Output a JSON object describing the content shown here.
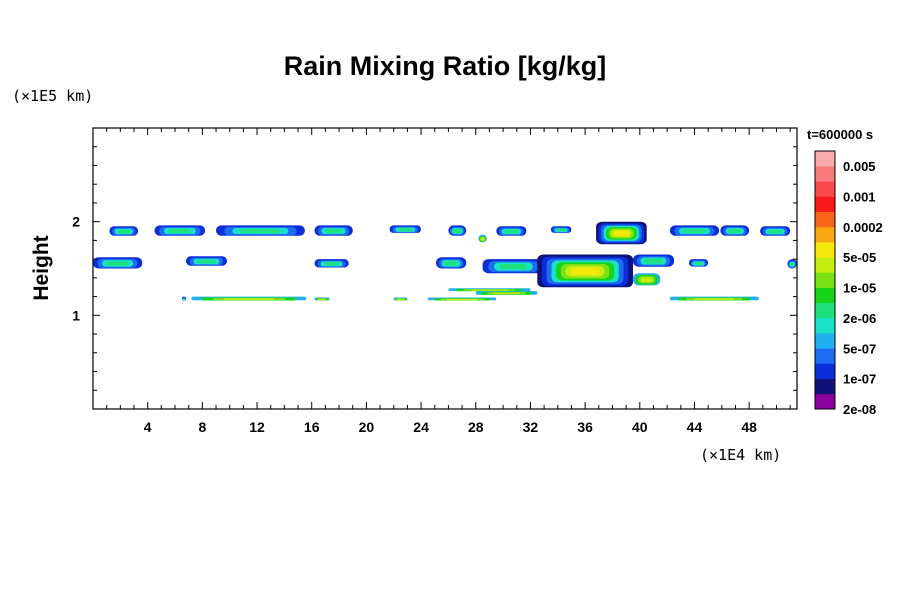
{
  "chart_data": {
    "type": "heatmap",
    "title": "Rain Mixing Ratio [kg/kg]",
    "ylabel": "Height",
    "y_unit": "(×1E5 km)",
    "x_unit": "(×1E4 km)",
    "time_label": "t=600000 s",
    "xlim": [
      0,
      51.5
    ],
    "ylim": [
      0,
      3
    ],
    "x_ticks": [
      "4",
      "8",
      "12",
      "16",
      "20",
      "24",
      "28",
      "32",
      "36",
      "40",
      "44",
      "48"
    ],
    "y_ticks": [
      "1",
      "2"
    ],
    "colorbar": {
      "labels": [
        "0.005",
        "0.001",
        "0.0002",
        "5e-05",
        "1e-05",
        "2e-06",
        "5e-07",
        "1e-07",
        "2e-08"
      ],
      "colors": [
        "#8a009e",
        "#10127a",
        "#0a2fd8",
        "#1e6cf2",
        "#22b0f3",
        "#19e2c8",
        "#1ee07e",
        "#16d41a",
        "#7ae214",
        "#c4ee10",
        "#f2e80a",
        "#f8a810",
        "#f86518",
        "#f81a1a",
        "#f84a4a",
        "#f87a7a",
        "#f9aaaa"
      ]
    },
    "features": [
      {
        "x": [
          1.2,
          3.3
        ],
        "y": [
          1.85,
          1.95
        ],
        "level": "1e-07"
      },
      {
        "x": [
          4.5,
          8.2
        ],
        "y": [
          1.85,
          1.96
        ],
        "level": "1e-07"
      },
      {
        "x": [
          9.0,
          15.5
        ],
        "y": [
          1.85,
          1.96
        ],
        "level": "1e-07"
      },
      {
        "x": [
          16.2,
          19.0
        ],
        "y": [
          1.85,
          1.96
        ],
        "level": "1e-07"
      },
      {
        "x": [
          21.7,
          24.0
        ],
        "y": [
          1.88,
          1.96
        ],
        "level": "1e-07"
      },
      {
        "x": [
          26.0,
          27.3
        ],
        "y": [
          1.85,
          1.96
        ],
        "level": "1e-07"
      },
      {
        "x": [
          29.5,
          31.7
        ],
        "y": [
          1.85,
          1.95
        ],
        "level": "1e-07"
      },
      {
        "x": [
          33.5,
          35.0
        ],
        "y": [
          1.88,
          1.95
        ],
        "level": "1e-07"
      },
      {
        "x": [
          36.8,
          40.5
        ],
        "y": [
          1.76,
          2.0
        ],
        "level": "5e-05"
      },
      {
        "x": [
          42.2,
          45.8
        ],
        "y": [
          1.85,
          1.96
        ],
        "level": "1e-07"
      },
      {
        "x": [
          45.9,
          48.0
        ],
        "y": [
          1.85,
          1.96
        ],
        "level": "1e-07"
      },
      {
        "x": [
          48.8,
          51.0
        ],
        "y": [
          1.85,
          1.95
        ],
        "level": "1e-07"
      },
      {
        "x": [
          0.0,
          3.6
        ],
        "y": [
          1.5,
          1.62
        ],
        "level": "1e-07"
      },
      {
        "x": [
          6.8,
          9.8
        ],
        "y": [
          1.53,
          1.63
        ],
        "level": "1e-07"
      },
      {
        "x": [
          16.2,
          18.7
        ],
        "y": [
          1.51,
          1.6
        ],
        "level": "1e-07"
      },
      {
        "x": [
          25.1,
          27.3
        ],
        "y": [
          1.5,
          1.62
        ],
        "level": "1e-07"
      },
      {
        "x": [
          28.5,
          33.0
        ],
        "y": [
          1.45,
          1.6
        ],
        "level": "1e-07"
      },
      {
        "x": [
          32.5,
          39.5
        ],
        "y": [
          1.3,
          1.65
        ],
        "level": "5e-05"
      },
      {
        "x": [
          39.5,
          42.5
        ],
        "y": [
          1.52,
          1.65
        ],
        "level": "1e-07"
      },
      {
        "x": [
          39.5,
          41.5
        ],
        "y": [
          1.32,
          1.45
        ],
        "level": "1e-05"
      },
      {
        "x": [
          43.6,
          45.0
        ],
        "y": [
          1.52,
          1.6
        ],
        "level": "1e-07"
      },
      {
        "x": [
          50.8,
          51.5
        ],
        "y": [
          1.5,
          1.6
        ],
        "level": "1e-07"
      },
      {
        "x": [
          28.2,
          28.8
        ],
        "y": [
          1.78,
          1.86
        ],
        "level": "1e-05"
      },
      {
        "x": [
          26.0,
          32.0
        ],
        "y": [
          1.26,
          1.29
        ],
        "level": "1e-05"
      },
      {
        "x": [
          28.0,
          32.5
        ],
        "y": [
          1.22,
          1.26
        ],
        "level": "1e-05"
      },
      {
        "x": [
          7.2,
          15.6
        ],
        "y": [
          1.16,
          1.2
        ],
        "level": "1e-05"
      },
      {
        "x": [
          16.2,
          17.3
        ],
        "y": [
          1.16,
          1.19
        ],
        "level": "1e-05"
      },
      {
        "x": [
          22.0,
          23.0
        ],
        "y": [
          1.16,
          1.19
        ],
        "level": "1e-05"
      },
      {
        "x": [
          24.5,
          29.5
        ],
        "y": [
          1.16,
          1.19
        ],
        "level": "1e-05"
      },
      {
        "x": [
          42.2,
          48.7
        ],
        "y": [
          1.16,
          1.2
        ],
        "level": "1e-05"
      },
      {
        "x": [
          6.5,
          6.8
        ],
        "y": [
          1.16,
          1.2
        ],
        "level": "1e-07"
      }
    ]
  }
}
